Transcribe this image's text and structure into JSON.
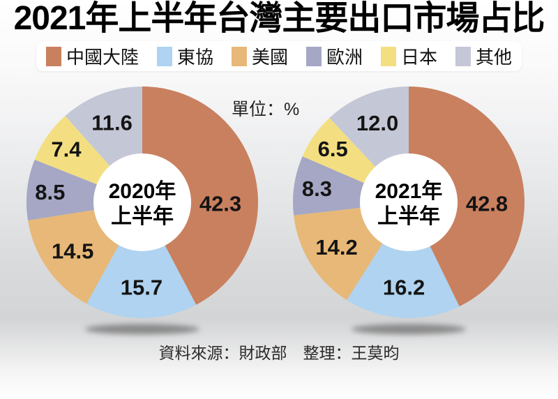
{
  "header": {
    "title": "2021年上半年台灣主要出口市場占比"
  },
  "unit_label": "單位：%",
  "legend": {
    "items": [
      {
        "key": "china",
        "label": "中國大陸",
        "color": "#C9805F"
      },
      {
        "key": "asean",
        "label": "東協",
        "color": "#AFD3F0"
      },
      {
        "key": "usa",
        "label": "美國",
        "color": "#E7B877"
      },
      {
        "key": "europe",
        "label": "歐洲",
        "color": "#A5A7C5"
      },
      {
        "key": "japan",
        "label": "日本",
        "color": "#F3DF81"
      },
      {
        "key": "others",
        "label": "其他",
        "color": "#C4C7D6"
      }
    ]
  },
  "footer": {
    "source": "資料來源：財政部　整理：王莫昀"
  },
  "colors": {
    "china": "#C9805F",
    "asean": "#AFD3F0",
    "usa": "#E7B877",
    "europe": "#A5A7C5",
    "japan": "#F3DF81",
    "others": "#C4C7D6",
    "shadow": "#4a4a4a",
    "hole": "#ffffff"
  },
  "chart_data": [
    {
      "type": "pie",
      "subtype": "donut",
      "title": "2020年上半年",
      "center_label_lines": [
        "2020年",
        "上半年"
      ],
      "unit": "%",
      "categories": [
        "中國大陸",
        "東協",
        "美國",
        "歐洲",
        "日本",
        "其他"
      ],
      "keys": [
        "china",
        "asean",
        "usa",
        "europe",
        "japan",
        "others"
      ],
      "values": [
        42.3,
        15.7,
        14.5,
        8.5,
        7.4,
        11.6
      ],
      "colors": [
        "#C9805F",
        "#AFD3F0",
        "#E7B877",
        "#A5A7C5",
        "#F3DF81",
        "#C4C7D6"
      ],
      "start_angle_deg": 0,
      "direction": "clockwise",
      "legend_position": "top"
    },
    {
      "type": "pie",
      "subtype": "donut",
      "title": "2021年上半年",
      "center_label_lines": [
        "2021年",
        "上半年"
      ],
      "unit": "%",
      "categories": [
        "中國大陸",
        "東協",
        "美國",
        "歐洲",
        "日本",
        "其他"
      ],
      "keys": [
        "china",
        "asean",
        "usa",
        "europe",
        "japan",
        "others"
      ],
      "values": [
        42.8,
        16.2,
        14.2,
        8.3,
        6.5,
        12.0
      ],
      "colors": [
        "#C9805F",
        "#AFD3F0",
        "#E7B877",
        "#A5A7C5",
        "#F3DF81",
        "#C4C7D6"
      ],
      "start_angle_deg": 0,
      "direction": "clockwise",
      "legend_position": "top"
    }
  ]
}
